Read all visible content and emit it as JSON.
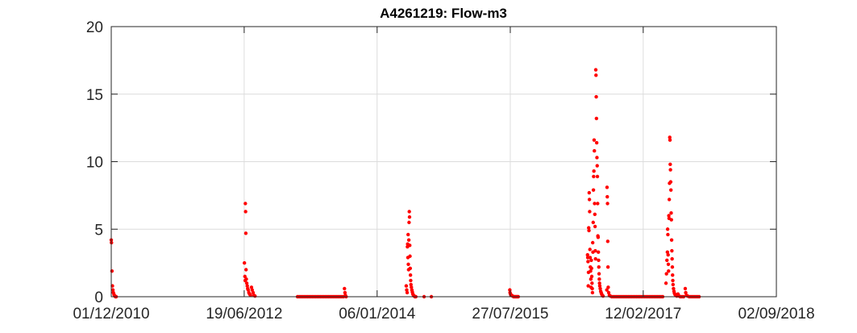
{
  "chart_data": {
    "type": "scatter",
    "title": "A4261219: Flow-m3",
    "xlabel": "",
    "ylabel": "",
    "grid": true,
    "marker_color": "#ff0000",
    "xlim": [
      "01/12/2010",
      "02/09/2018"
    ],
    "ylim": [
      0,
      20
    ],
    "x_ticks": [
      "01/12/2010",
      "19/06/2012",
      "06/01/2014",
      "27/07/2015",
      "12/02/2017",
      "02/09/2018"
    ],
    "y_ticks": [
      0,
      5,
      10,
      15,
      20
    ],
    "series": [
      {
        "points": [
          [
            "01/12/2010",
            4.2
          ],
          [
            "02/12/2010",
            4.0
          ],
          [
            "04/12/2010",
            1.9
          ],
          [
            "06/12/2010",
            0.8
          ],
          [
            "08/12/2010",
            0.5
          ],
          [
            "10/12/2010",
            0.3
          ],
          [
            "13/12/2010",
            0.15
          ],
          [
            "16/12/2010",
            0.05
          ],
          [
            "19/12/2010",
            0.0
          ],
          [
            "22/12/2010",
            0.0
          ],
          [
            "20/06/2012",
            2.5
          ],
          [
            "22/06/2012",
            1.5
          ],
          [
            "23/06/2012",
            1.2
          ],
          [
            "24/06/2012",
            6.9
          ],
          [
            "25/06/2012",
            6.3
          ],
          [
            "26/06/2012",
            4.7
          ],
          [
            "27/06/2012",
            2.0
          ],
          [
            "28/06/2012",
            1.3
          ],
          [
            "30/06/2012",
            1.0
          ],
          [
            "02/07/2012",
            0.8
          ],
          [
            "04/07/2012",
            0.6
          ],
          [
            "06/07/2012",
            0.5
          ],
          [
            "09/07/2012",
            0.3
          ],
          [
            "12/07/2012",
            0.2
          ],
          [
            "16/07/2012",
            0.1
          ],
          [
            "20/07/2012",
            0.7
          ],
          [
            "23/07/2012",
            0.5
          ],
          [
            "27/07/2012",
            0.3
          ],
          [
            "31/07/2012",
            0.1
          ],
          [
            "04/08/2012",
            0.05
          ],
          [
            "01/02/2013",
            0.0
          ],
          [
            "08/02/2013",
            0.0
          ],
          [
            "15/02/2013",
            0.0
          ],
          [
            "22/02/2013",
            0.0
          ],
          [
            "01/03/2013",
            0.0
          ],
          [
            "08/03/2013",
            0.0
          ],
          [
            "15/03/2013",
            0.0
          ],
          [
            "22/03/2013",
            0.0
          ],
          [
            "29/03/2013",
            0.0
          ],
          [
            "05/04/2013",
            0.0
          ],
          [
            "12/04/2013",
            0.0
          ],
          [
            "19/04/2013",
            0.0
          ],
          [
            "26/04/2013",
            0.0
          ],
          [
            "03/05/2013",
            0.0
          ],
          [
            "10/05/2013",
            0.0
          ],
          [
            "17/05/2013",
            0.0
          ],
          [
            "24/05/2013",
            0.0
          ],
          [
            "31/05/2013",
            0.0
          ],
          [
            "07/06/2013",
            0.0
          ],
          [
            "14/06/2013",
            0.0
          ],
          [
            "21/06/2013",
            0.0
          ],
          [
            "28/06/2013",
            0.0
          ],
          [
            "05/07/2013",
            0.0
          ],
          [
            "12/07/2013",
            0.0
          ],
          [
            "19/07/2013",
            0.0
          ],
          [
            "26/07/2013",
            0.0
          ],
          [
            "02/08/2013",
            0.0
          ],
          [
            "09/08/2013",
            0.0
          ],
          [
            "16/08/2013",
            0.0
          ],
          [
            "20/08/2013",
            0.6
          ],
          [
            "22/08/2013",
            0.3
          ],
          [
            "24/08/2013",
            0.1
          ],
          [
            "27/08/2013",
            0.0
          ],
          [
            "10/05/2014",
            0.8
          ],
          [
            "12/05/2014",
            0.5
          ],
          [
            "14/05/2014",
            0.3
          ],
          [
            "15/05/2014",
            3.7
          ],
          [
            "16/05/2014",
            3.9
          ],
          [
            "17/05/2014",
            2.9
          ],
          [
            "18/05/2014",
            4.6
          ],
          [
            "19/05/2014",
            2.4
          ],
          [
            "20/05/2014",
            2.0
          ],
          [
            "21/05/2014",
            4.2
          ],
          [
            "22/05/2014",
            5.5
          ],
          [
            "23/05/2014",
            6.3
          ],
          [
            "24/05/2014",
            5.9
          ],
          [
            "25/05/2014",
            3.8
          ],
          [
            "26/05/2014",
            3.0
          ],
          [
            "27/05/2014",
            2.1
          ],
          [
            "28/05/2014",
            1.6
          ],
          [
            "29/05/2014",
            1.2
          ],
          [
            "30/05/2014",
            0.9
          ],
          [
            "01/06/2014",
            0.7
          ],
          [
            "03/06/2014",
            0.5
          ],
          [
            "05/06/2014",
            0.35
          ],
          [
            "07/06/2014",
            0.2
          ],
          [
            "10/06/2014",
            0.1
          ],
          [
            "13/06/2014",
            0.05
          ],
          [
            "16/06/2014",
            0.0
          ],
          [
            "20/06/2014",
            0.0
          ],
          [
            "25/07/2014",
            0.0
          ],
          [
            "25/08/2014",
            0.0
          ],
          [
            "25/07/2015",
            0.5
          ],
          [
            "26/07/2015",
            0.3
          ],
          [
            "28/07/2015",
            0.2
          ],
          [
            "30/07/2015",
            0.1
          ],
          [
            "02/08/2015",
            0.1
          ],
          [
            "06/08/2015",
            0.05
          ],
          [
            "10/08/2015",
            0.0
          ],
          [
            "14/08/2015",
            0.0
          ],
          [
            "18/08/2015",
            0.0
          ],
          [
            "22/08/2015",
            0.0
          ],
          [
            "26/08/2015",
            0.0
          ],
          [
            "30/08/2015",
            0.0
          ],
          [
            "20/06/2016",
            3.1
          ],
          [
            "21/06/2016",
            2.9
          ],
          [
            "22/06/2016",
            2.6
          ],
          [
            "23/06/2016",
            0.8
          ],
          [
            "24/06/2016",
            1.8
          ],
          [
            "25/06/2016",
            5.1
          ],
          [
            "26/06/2016",
            4.9
          ],
          [
            "27/06/2016",
            7.7
          ],
          [
            "28/06/2016",
            7.2
          ],
          [
            "29/06/2016",
            6.3
          ],
          [
            "30/06/2016",
            3.5
          ],
          [
            "01/07/2016",
            2.9
          ],
          [
            "02/07/2016",
            2.2
          ],
          [
            "03/07/2016",
            1.9
          ],
          [
            "04/07/2016",
            1.3
          ],
          [
            "05/07/2016",
            0.7
          ],
          [
            "06/07/2016",
            2.7
          ],
          [
            "07/07/2016",
            2.1
          ],
          [
            "08/07/2016",
            1.5
          ],
          [
            "09/07/2016",
            1.0
          ],
          [
            "10/07/2016",
            0.6
          ],
          [
            "11/07/2016",
            0.3
          ],
          [
            "12/07/2016",
            4.0
          ],
          [
            "13/07/2016",
            3.3
          ],
          [
            "14/07/2016",
            5.5
          ],
          [
            "15/07/2016",
            7.9
          ],
          [
            "16/07/2016",
            8.9
          ],
          [
            "17/07/2016",
            9.3
          ],
          [
            "18/07/2016",
            11.6
          ],
          [
            "19/07/2016",
            10.8
          ],
          [
            "20/07/2016",
            6.9
          ],
          [
            "21/07/2016",
            6.1
          ],
          [
            "22/07/2016",
            5.2
          ],
          [
            "23/07/2016",
            3.4
          ],
          [
            "24/07/2016",
            2.8
          ],
          [
            "25/07/2016",
            16.8
          ],
          [
            "26/07/2016",
            16.4
          ],
          [
            "27/07/2016",
            14.8
          ],
          [
            "28/07/2016",
            13.2
          ],
          [
            "29/07/2016",
            11.4
          ],
          [
            "30/07/2016",
            10.3
          ],
          [
            "31/07/2016",
            9.7
          ],
          [
            "01/08/2016",
            8.9
          ],
          [
            "02/08/2016",
            6.9
          ],
          [
            "03/08/2016",
            4.5
          ],
          [
            "04/08/2016",
            4.4
          ],
          [
            "05/08/2016",
            3.3
          ],
          [
            "06/08/2016",
            2.7
          ],
          [
            "07/08/2016",
            2.2
          ],
          [
            "08/08/2016",
            1.7
          ],
          [
            "09/08/2016",
            1.3
          ],
          [
            "10/08/2016",
            1.0
          ],
          [
            "11/08/2016",
            0.8
          ],
          [
            "13/08/2016",
            0.6
          ],
          [
            "15/08/2016",
            0.4
          ],
          [
            "17/08/2016",
            0.3
          ],
          [
            "19/08/2016",
            0.2
          ],
          [
            "22/08/2016",
            0.1
          ],
          [
            "25/08/2016",
            0.05
          ],
          [
            "10/09/2016",
            0.5
          ],
          [
            "11/09/2016",
            8.1
          ],
          [
            "12/09/2016",
            7.4
          ],
          [
            "13/09/2016",
            6.9
          ],
          [
            "14/09/2016",
            4.1
          ],
          [
            "15/09/2016",
            2.2
          ],
          [
            "16/09/2016",
            0.7
          ],
          [
            "18/09/2016",
            0.3
          ],
          [
            "21/09/2016",
            0.1
          ],
          [
            "25/09/2016",
            0.05
          ],
          [
            "01/10/2016",
            0.0
          ],
          [
            "08/10/2016",
            0.0
          ],
          [
            "15/10/2016",
            0.0
          ],
          [
            "22/10/2016",
            0.0
          ],
          [
            "29/10/2016",
            0.0
          ],
          [
            "05/11/2016",
            0.0
          ],
          [
            "12/11/2016",
            0.0
          ],
          [
            "19/11/2016",
            0.0
          ],
          [
            "26/11/2016",
            0.0
          ],
          [
            "03/12/2016",
            0.0
          ],
          [
            "10/12/2016",
            0.0
          ],
          [
            "17/12/2016",
            0.0
          ],
          [
            "24/12/2016",
            0.0
          ],
          [
            "31/12/2016",
            0.0
          ],
          [
            "07/01/2017",
            0.0
          ],
          [
            "14/01/2017",
            0.0
          ],
          [
            "21/01/2017",
            0.0
          ],
          [
            "28/01/2017",
            0.0
          ],
          [
            "04/02/2017",
            0.0
          ],
          [
            "11/02/2017",
            0.0
          ],
          [
            "18/02/2017",
            0.0
          ],
          [
            "25/02/2017",
            0.0
          ],
          [
            "04/03/2017",
            0.0
          ],
          [
            "11/03/2017",
            0.0
          ],
          [
            "18/03/2017",
            0.0
          ],
          [
            "25/03/2017",
            0.0
          ],
          [
            "01/04/2017",
            0.0
          ],
          [
            "08/04/2017",
            0.0
          ],
          [
            "15/04/2017",
            0.0
          ],
          [
            "22/04/2017",
            0.0
          ],
          [
            "29/04/2017",
            0.0
          ],
          [
            "06/05/2017",
            0.0
          ],
          [
            "20/05/2017",
            1.0
          ],
          [
            "22/05/2017",
            1.7
          ],
          [
            "24/05/2017",
            2.7
          ],
          [
            "26/05/2017",
            3.3
          ],
          [
            "27/05/2017",
            5.0
          ],
          [
            "28/05/2017",
            4.6
          ],
          [
            "29/05/2017",
            3.1
          ],
          [
            "30/05/2017",
            2.4
          ],
          [
            "31/05/2017",
            1.9
          ],
          [
            "01/06/2017",
            6.0
          ],
          [
            "02/06/2017",
            5.8
          ],
          [
            "03/06/2017",
            7.2
          ],
          [
            "04/06/2017",
            8.4
          ],
          [
            "05/06/2017",
            11.8
          ],
          [
            "06/06/2017",
            11.6
          ],
          [
            "07/06/2017",
            9.8
          ],
          [
            "08/06/2017",
            9.4
          ],
          [
            "09/06/2017",
            8.5
          ],
          [
            "10/06/2017",
            7.9
          ],
          [
            "11/06/2017",
            6.2
          ],
          [
            "12/06/2017",
            5.7
          ],
          [
            "13/06/2017",
            4.2
          ],
          [
            "14/06/2017",
            3.4
          ],
          [
            "15/06/2017",
            2.8
          ],
          [
            "16/06/2017",
            2.2
          ],
          [
            "17/06/2017",
            1.6
          ],
          [
            "18/06/2017",
            1.2
          ],
          [
            "19/06/2017",
            0.9
          ],
          [
            "21/06/2017",
            0.6
          ],
          [
            "23/06/2017",
            0.4
          ],
          [
            "25/06/2017",
            0.25
          ],
          [
            "28/06/2017",
            0.15
          ],
          [
            "01/07/2017",
            0.1
          ],
          [
            "05/07/2017",
            0.05
          ],
          [
            "10/07/2017",
            0.2
          ],
          [
            "15/07/2017",
            0.05
          ],
          [
            "20/07/2017",
            0.0
          ],
          [
            "27/07/2017",
            0.0
          ],
          [
            "03/08/2017",
            0.0
          ],
          [
            "10/08/2017",
            0.6
          ],
          [
            "12/08/2017",
            0.3
          ],
          [
            "15/08/2017",
            0.1
          ],
          [
            "20/08/2017",
            0.05
          ],
          [
            "27/08/2017",
            0.0
          ],
          [
            "03/09/2017",
            0.0
          ],
          [
            "10/09/2017",
            0.0
          ],
          [
            "17/09/2017",
            0.0
          ],
          [
            "24/09/2017",
            0.0
          ],
          [
            "01/10/2017",
            0.0
          ],
          [
            "08/10/2017",
            0.0
          ]
        ]
      }
    ]
  }
}
